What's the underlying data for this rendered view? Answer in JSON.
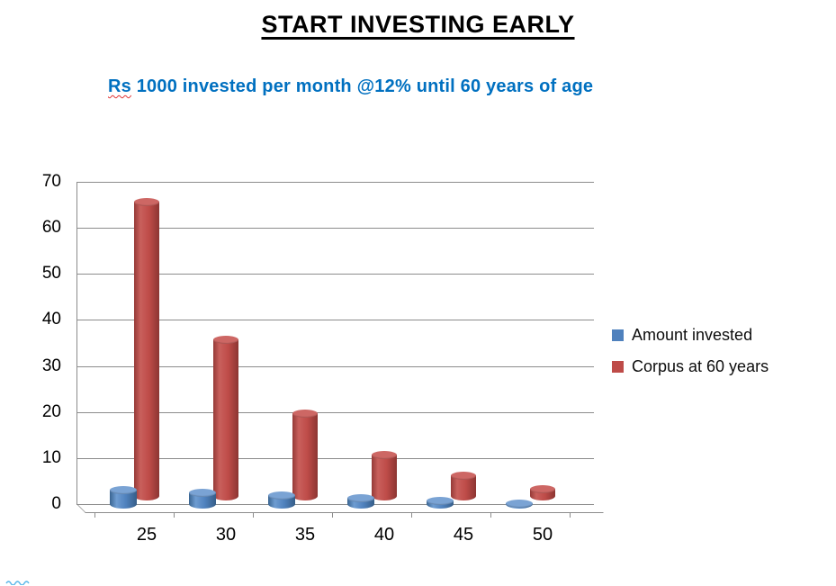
{
  "slide": {
    "title": "START INVESTING EARLY",
    "subtitle_prefix": "Rs",
    "subtitle_rest": " 1000 invested per month @12% until 60 years of age"
  },
  "chart_data": {
    "type": "bar",
    "style": "3d-cylinder",
    "title": "START INVESTING EARLY",
    "subtitle": "Rs 1000 invested per month @12% until 60 years of age",
    "categories": [
      "25",
      "30",
      "35",
      "40",
      "45",
      "50"
    ],
    "series": [
      {
        "name": "Amount invested",
        "color": "#4F81BD",
        "values": [
          4.2,
          3.6,
          3.0,
          2.4,
          1.8,
          1.2
        ]
      },
      {
        "name": "Corpus at 60 years",
        "color": "#BE4B48",
        "values": [
          65,
          35,
          19,
          10,
          5.5,
          2.5
        ]
      }
    ],
    "xlabel": "",
    "ylabel": "",
    "ylim": [
      0,
      70
    ],
    "yticks": [
      0,
      10,
      20,
      30,
      40,
      50,
      60,
      70
    ],
    "grid": true,
    "legend_position": "right",
    "colors": {
      "grid": "#8C8C8C",
      "axis": "#8C8C8C",
      "subtitle": "#0070C0",
      "text": "#000000"
    }
  }
}
